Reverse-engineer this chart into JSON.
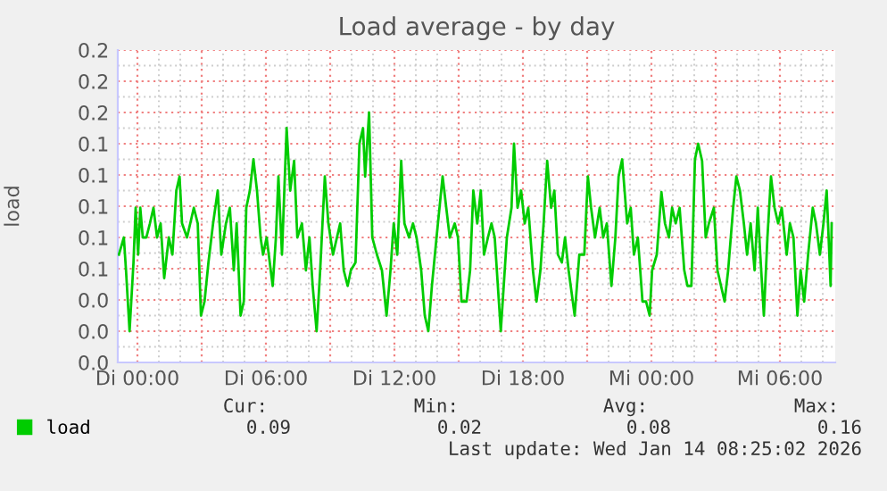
{
  "chart_data": {
    "type": "line",
    "title": "Load average - by day",
    "ylabel": "load",
    "x": [
      "2026-01-12T23:08",
      "2026-01-12T23:22",
      "2026-01-12T23:28",
      "2026-01-12T23:38",
      "2026-01-12T23:49",
      "2026-01-12T23:55",
      "2026-01-13T00:02",
      "2026-01-13T00:08",
      "2026-01-13T00:15",
      "2026-01-13T00:25",
      "2026-01-13T00:35",
      "2026-01-13T00:45",
      "2026-01-13T00:55",
      "2026-01-13T01:05",
      "2026-01-13T01:15",
      "2026-01-13T01:28",
      "2026-01-13T01:38",
      "2026-01-13T01:49",
      "2026-01-13T01:58",
      "2026-01-13T02:05",
      "2026-01-13T02:19",
      "2026-01-13T02:28",
      "2026-01-13T02:38",
      "2026-01-13T02:49",
      "2026-01-13T02:58",
      "2026-01-13T03:08",
      "2026-01-13T03:19",
      "2026-01-13T03:32",
      "2026-01-13T03:45",
      "2026-01-13T03:55",
      "2026-01-13T04:08",
      "2026-01-13T04:19",
      "2026-01-13T04:30",
      "2026-01-13T04:38",
      "2026-01-13T04:49",
      "2026-01-13T04:58",
      "2026-01-13T05:05",
      "2026-01-13T05:15",
      "2026-01-13T05:25",
      "2026-01-13T05:35",
      "2026-01-13T05:45",
      "2026-01-13T05:52",
      "2026-01-13T06:02",
      "2026-01-13T06:08",
      "2026-01-13T06:19",
      "2026-01-13T06:28",
      "2026-01-13T06:35",
      "2026-01-13T06:45",
      "2026-01-13T06:58",
      "2026-01-13T07:08",
      "2026-01-13T07:19",
      "2026-01-13T07:28",
      "2026-01-13T07:41",
      "2026-01-13T07:52",
      "2026-01-13T08:02",
      "2026-01-13T08:11",
      "2026-01-13T08:22",
      "2026-01-13T08:32",
      "2026-01-13T08:45",
      "2026-01-13T08:55",
      "2026-01-13T09:08",
      "2026-01-13T09:19",
      "2026-01-13T09:28",
      "2026-01-13T09:38",
      "2026-01-13T09:49",
      "2026-01-13T09:58",
      "2026-01-13T10:11",
      "2026-01-13T10:22",
      "2026-01-13T10:32",
      "2026-01-13T10:38",
      "2026-01-13T10:49",
      "2026-01-13T10:58",
      "2026-01-13T11:11",
      "2026-01-13T11:25",
      "2026-01-13T11:38",
      "2026-01-13T11:49",
      "2026-01-13T11:58",
      "2026-01-13T12:08",
      "2026-01-13T12:19",
      "2026-01-13T12:28",
      "2026-01-13T12:41",
      "2026-01-13T12:52",
      "2026-01-13T13:02",
      "2026-01-13T13:15",
      "2026-01-13T13:25",
      "2026-01-13T13:35",
      "2026-01-13T13:45",
      "2026-01-13T13:58",
      "2026-01-13T14:15",
      "2026-01-13T14:35",
      "2026-01-13T14:49",
      "2026-01-13T14:58",
      "2026-01-13T15:08",
      "2026-01-13T15:22",
      "2026-01-13T15:32",
      "2026-01-13T15:41",
      "2026-01-13T15:52",
      "2026-01-13T16:02",
      "2026-01-13T16:11",
      "2026-01-13T16:22",
      "2026-01-13T16:32",
      "2026-01-13T16:41",
      "2026-01-13T16:58",
      "2026-01-13T17:15",
      "2026-01-13T17:28",
      "2026-01-13T17:35",
      "2026-01-13T17:45",
      "2026-01-13T17:55",
      "2026-01-13T18:05",
      "2026-01-13T18:15",
      "2026-01-13T18:28",
      "2026-01-13T18:38",
      "2026-01-13T18:49",
      "2026-01-13T18:58",
      "2026-01-13T19:08",
      "2026-01-13T19:19",
      "2026-01-13T19:28",
      "2026-01-13T19:38",
      "2026-01-13T19:49",
      "2026-01-13T19:58",
      "2026-01-13T20:08",
      "2026-01-13T20:25",
      "2026-01-13T20:38",
      "2026-01-13T20:52",
      "2026-01-13T21:02",
      "2026-01-13T21:11",
      "2026-01-13T21:22",
      "2026-01-13T21:35",
      "2026-01-13T21:45",
      "2026-01-13T21:55",
      "2026-01-13T22:08",
      "2026-01-13T22:19",
      "2026-01-13T22:28",
      "2026-01-13T22:38",
      "2026-01-13T22:52",
      "2026-01-13T23:02",
      "2026-01-13T23:11",
      "2026-01-13T23:22",
      "2026-01-13T23:35",
      "2026-01-13T23:45",
      "2026-01-13T23:55",
      "2026-01-14T00:02",
      "2026-01-14T00:15",
      "2026-01-14T00:28",
      "2026-01-14T00:38",
      "2026-01-14T00:49",
      "2026-01-14T00:58",
      "2026-01-14T01:08",
      "2026-01-14T01:19",
      "2026-01-14T01:32",
      "2026-01-14T01:41",
      "2026-01-14T01:52",
      "2026-01-14T02:02",
      "2026-01-14T02:11",
      "2026-01-14T02:22",
      "2026-01-14T02:32",
      "2026-01-14T02:41",
      "2026-01-14T02:55",
      "2026-01-14T03:05",
      "2026-01-14T03:15",
      "2026-01-14T03:25",
      "2026-01-14T03:35",
      "2026-01-14T03:49",
      "2026-01-14T03:58",
      "2026-01-14T04:08",
      "2026-01-14T04:19",
      "2026-01-14T04:28",
      "2026-01-14T04:38",
      "2026-01-14T04:49",
      "2026-01-14T04:58",
      "2026-01-14T05:05",
      "2026-01-14T05:15",
      "2026-01-14T05:25",
      "2026-01-14T05:35",
      "2026-01-14T05:45",
      "2026-01-14T05:55",
      "2026-01-14T06:05",
      "2026-01-14T06:19",
      "2026-01-14T06:28",
      "2026-01-14T06:38",
      "2026-01-14T06:49",
      "2026-01-14T06:58",
      "2026-01-14T07:08",
      "2026-01-14T07:19",
      "2026-01-14T07:32",
      "2026-01-14T07:41",
      "2026-01-14T07:52",
      "2026-01-14T08:02",
      "2026-01-14T08:11",
      "2026-01-14T08:22",
      "2026-01-14T08:25"
    ],
    "series": [
      {
        "name": "load",
        "color": "#00cc00",
        "values": [
          0.069,
          0.08,
          0.059,
          0.02,
          0.064,
          0.099,
          0.069,
          0.099,
          0.08,
          0.08,
          0.089,
          0.099,
          0.08,
          0.089,
          0.054,
          0.08,
          0.069,
          0.11,
          0.119,
          0.089,
          0.08,
          0.089,
          0.099,
          0.089,
          0.03,
          0.039,
          0.064,
          0.089,
          0.11,
          0.069,
          0.089,
          0.099,
          0.059,
          0.089,
          0.03,
          0.039,
          0.099,
          0.11,
          0.13,
          0.11,
          0.08,
          0.069,
          0.08,
          0.069,
          0.049,
          0.08,
          0.119,
          0.069,
          0.15,
          0.11,
          0.129,
          0.08,
          0.089,
          0.059,
          0.08,
          0.049,
          0.02,
          0.059,
          0.119,
          0.089,
          0.069,
          0.08,
          0.089,
          0.059,
          0.049,
          0.059,
          0.064,
          0.14,
          0.15,
          0.119,
          0.16,
          0.08,
          0.069,
          0.059,
          0.03,
          0.059,
          0.089,
          0.069,
          0.129,
          0.089,
          0.08,
          0.089,
          0.08,
          0.059,
          0.03,
          0.02,
          0.049,
          0.08,
          0.119,
          0.08,
          0.089,
          0.08,
          0.039,
          0.039,
          0.059,
          0.11,
          0.089,
          0.11,
          0.069,
          0.08,
          0.089,
          0.08,
          0.02,
          0.08,
          0.099,
          0.14,
          0.099,
          0.11,
          0.089,
          0.099,
          0.059,
          0.039,
          0.059,
          0.089,
          0.129,
          0.099,
          0.11,
          0.069,
          0.064,
          0.08,
          0.059,
          0.03,
          0.069,
          0.069,
          0.119,
          0.099,
          0.08,
          0.099,
          0.08,
          0.089,
          0.049,
          0.08,
          0.119,
          0.13,
          0.089,
          0.099,
          0.069,
          0.08,
          0.039,
          0.039,
          0.03,
          0.059,
          0.069,
          0.109,
          0.089,
          0.08,
          0.099,
          0.089,
          0.099,
          0.059,
          0.049,
          0.049,
          0.13,
          0.14,
          0.129,
          0.08,
          0.089,
          0.099,
          0.059,
          0.049,
          0.039,
          0.059,
          0.099,
          0.119,
          0.11,
          0.089,
          0.069,
          0.089,
          0.059,
          0.099,
          0.069,
          0.03,
          0.08,
          0.119,
          0.099,
          0.089,
          0.099,
          0.069,
          0.089,
          0.08,
          0.03,
          0.059,
          0.039,
          0.069,
          0.099,
          0.089,
          0.069,
          0.089,
          0.11,
          0.049,
          0.089
        ]
      }
    ],
    "xlim": [
      "2026-01-12T23:05",
      "2026-01-14T08:35"
    ],
    "xticks": [
      {
        "value": "2026-01-13T00:00",
        "label": "Di 00:00"
      },
      {
        "value": "2026-01-13T03:00",
        "label": null
      },
      {
        "value": "2026-01-13T06:00",
        "label": "Di 06:00"
      },
      {
        "value": "2026-01-13T09:00",
        "label": null
      },
      {
        "value": "2026-01-13T12:00",
        "label": "Di 12:00"
      },
      {
        "value": "2026-01-13T15:00",
        "label": null
      },
      {
        "value": "2026-01-13T18:00",
        "label": "Di 18:00"
      },
      {
        "value": "2026-01-13T21:00",
        "label": null
      },
      {
        "value": "2026-01-14T00:00",
        "label": "Mi 00:00"
      },
      {
        "value": "2026-01-14T03:00",
        "label": null
      },
      {
        "value": "2026-01-14T06:00",
        "label": "Mi 06:00"
      }
    ],
    "ylim": [
      0,
      0.2
    ],
    "yticks": [
      {
        "value": 0,
        "label": "0.0"
      },
      {
        "value": 0.02,
        "label": "0.0"
      },
      {
        "value": 0.04,
        "label": "0.0"
      },
      {
        "value": 0.06,
        "label": "0.1"
      },
      {
        "value": 0.08,
        "label": "0.1"
      },
      {
        "value": 0.1,
        "label": "0.1"
      },
      {
        "value": 0.12,
        "label": "0.1"
      },
      {
        "value": 0.14,
        "label": "0.1"
      },
      {
        "value": 0.16,
        "label": "0.2"
      },
      {
        "value": 0.18,
        "label": "0.2"
      },
      {
        "value": 0.2,
        "label": "0.2"
      }
    ],
    "grid": true,
    "legend": "bottom left",
    "line_style": "solid",
    "marker": "none",
    "annotations": [
      "Cur:",
      "Min:",
      "Avg:",
      "Max:",
      "0.09",
      "0.02",
      "0.08",
      "0.16",
      "Last update: Wed Jan 14 08:25:02 2026"
    ]
  }
}
